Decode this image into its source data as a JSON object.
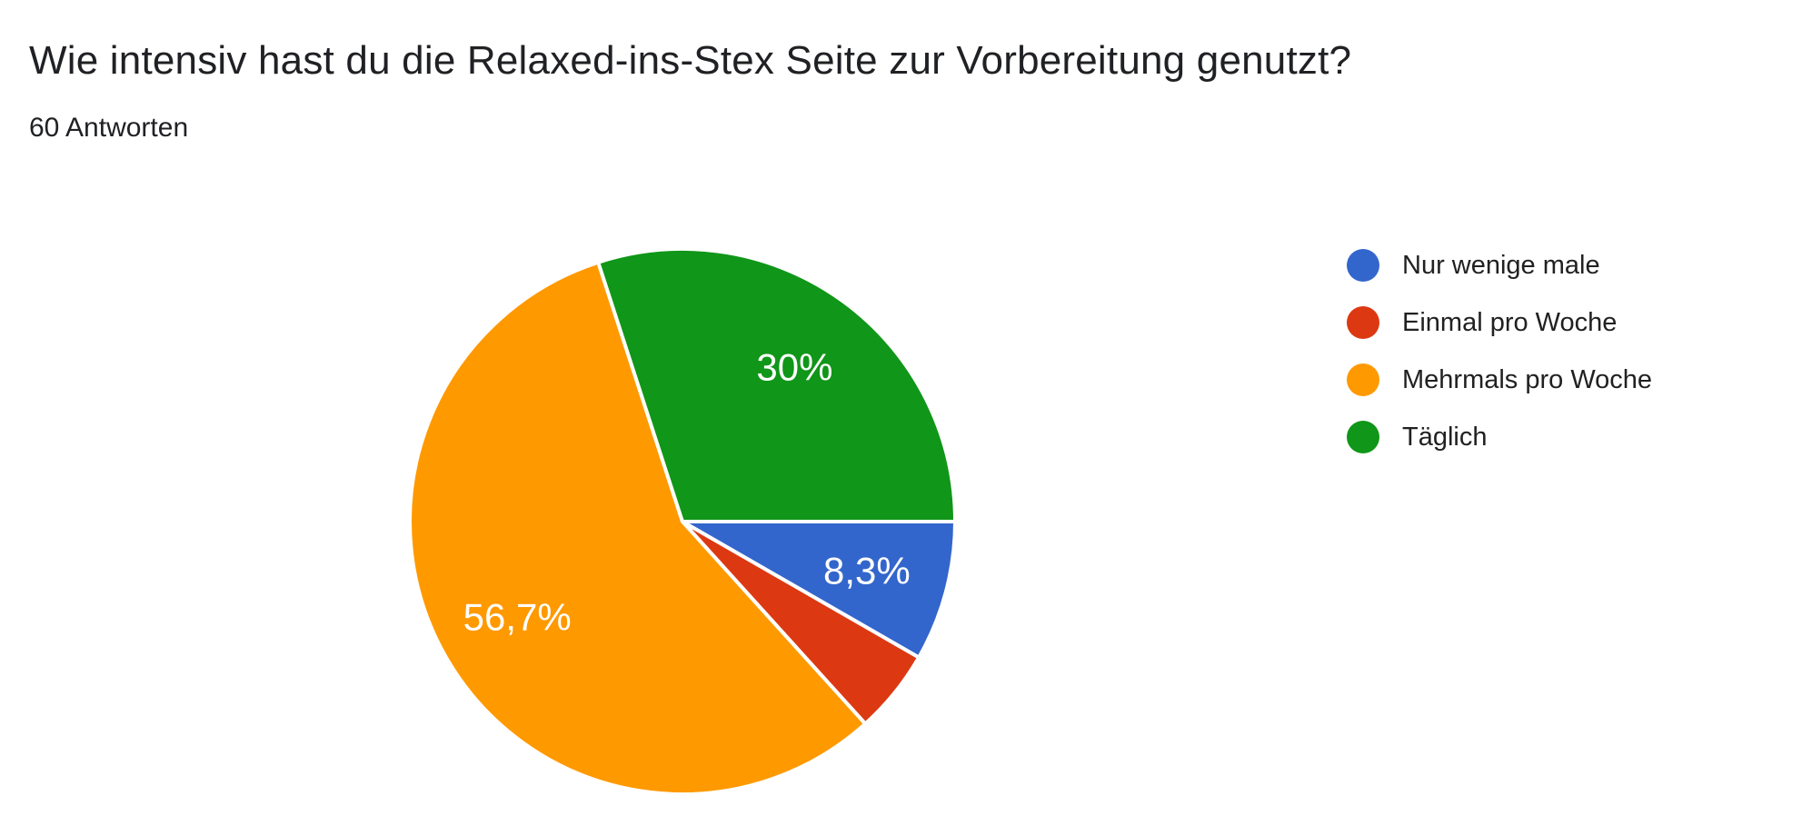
{
  "chart_data": {
    "type": "pie",
    "title": "Wie intensiv hast du die Relaxed-ins-Stex Seite zur Vorbereitung genutzt?",
    "subtitle": "60 Antworten",
    "responses_count": 60,
    "legend_position": "right",
    "direction": "clockwise",
    "start_angle_deg_from_east": 0,
    "slice_border_color": "#ffffff",
    "value_label_color": "#ffffff",
    "slices": [
      {
        "label": "Nur wenige male",
        "percent": 8.3,
        "value_label": "8,3%",
        "color": "#3366CC",
        "show_value_label": true
      },
      {
        "label": "Einmal pro Woche",
        "percent": 5.0,
        "value_label": "",
        "color": "#DC3912",
        "show_value_label": false
      },
      {
        "label": "Mehrmals pro Woche",
        "percent": 56.7,
        "value_label": "56,7%",
        "color": "#FF9900",
        "show_value_label": true
      },
      {
        "label": "Täglich",
        "percent": 30.0,
        "value_label": "30%",
        "color": "#109618",
        "show_value_label": true
      }
    ]
  }
}
